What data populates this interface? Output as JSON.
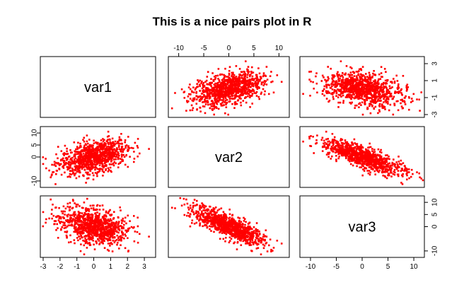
{
  "chart_data": {
    "type": "scatter-matrix",
    "title": "This is a nice pairs plot in R",
    "variables": [
      "var1",
      "var2",
      "var3"
    ],
    "point_color": "#ff0000",
    "n_points": 1000,
    "ranges": {
      "var1": [
        -3.0,
        3.5
      ],
      "var2": [
        -11.5,
        11.5
      ],
      "var3": [
        -11.5,
        11.5
      ]
    },
    "ticks": {
      "var1": [
        "-3",
        "-2",
        "-1",
        "0",
        "1",
        "2",
        "3"
      ],
      "var2": [
        "-10",
        "-5",
        "0",
        "5",
        "10"
      ],
      "var3": [
        "-10",
        "-5",
        "0",
        "5",
        "10"
      ],
      "var1_right": [
        "-3",
        "-1",
        "1",
        "3"
      ],
      "var2_left": [
        "-10",
        "0",
        "5",
        "10"
      ],
      "var3_right": [
        "-10",
        "0",
        "5",
        "10"
      ]
    },
    "relationships": {
      "var1_var2": "positive correlation, approx. r = 0.4",
      "var1_var3": "weak, approx. r = 0",
      "var2_var3": "negative correlation, approx. r = -0.7"
    }
  }
}
